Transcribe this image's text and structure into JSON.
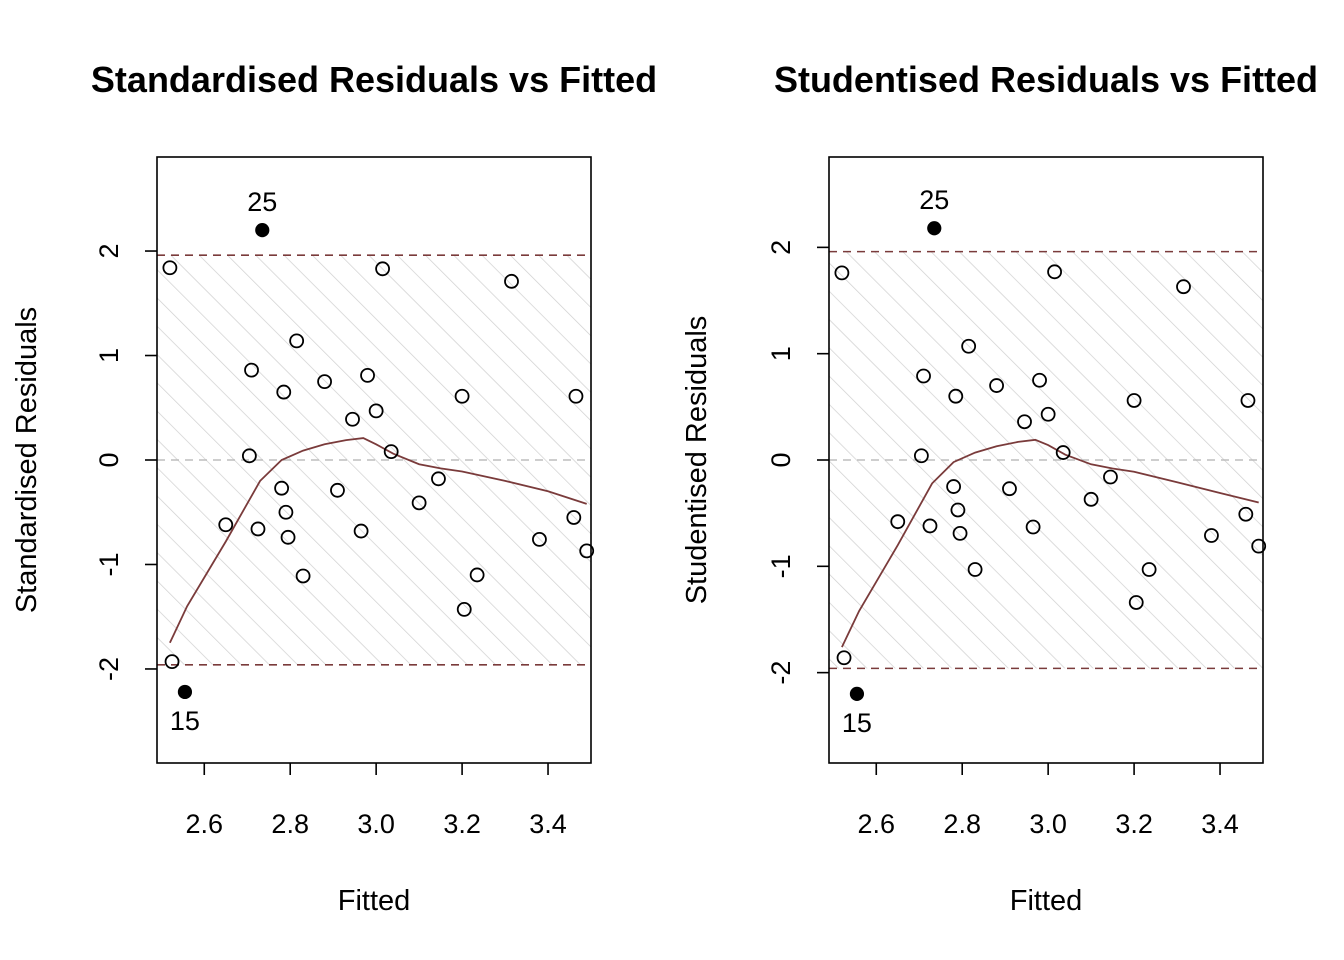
{
  "chart_data": [
    {
      "type": "scatter",
      "title": "Standardised Residuals vs Fitted",
      "xlabel": "Fitted",
      "ylabel": "Standardised Residuals",
      "xlim": [
        2.49,
        3.5
      ],
      "ylim": [
        -2.9,
        2.9
      ],
      "xticks": [
        "2.6",
        "2.8",
        "3.0",
        "3.2",
        "3.4"
      ],
      "yticks": [
        "-2",
        "-1",
        "0",
        "1",
        "2"
      ],
      "bounds": [
        -1.96,
        1.96
      ],
      "points": [
        {
          "x": 2.52,
          "y": 1.84
        },
        {
          "x": 2.525,
          "y": -1.93
        },
        {
          "x": 2.65,
          "y": -0.62
        },
        {
          "x": 2.705,
          "y": 0.04
        },
        {
          "x": 2.71,
          "y": 0.86
        },
        {
          "x": 2.725,
          "y": -0.66
        },
        {
          "x": 2.78,
          "y": -0.27
        },
        {
          "x": 2.785,
          "y": 0.65
        },
        {
          "x": 2.79,
          "y": -0.5
        },
        {
          "x": 2.795,
          "y": -0.74
        },
        {
          "x": 2.815,
          "y": 1.14
        },
        {
          "x": 2.83,
          "y": -1.11
        },
        {
          "x": 2.88,
          "y": 0.75
        },
        {
          "x": 2.91,
          "y": -0.29
        },
        {
          "x": 2.945,
          "y": 0.39
        },
        {
          "x": 2.965,
          "y": -0.68
        },
        {
          "x": 2.98,
          "y": 0.81
        },
        {
          "x": 3.0,
          "y": 0.47
        },
        {
          "x": 3.015,
          "y": 1.83
        },
        {
          "x": 3.035,
          "y": 0.08
        },
        {
          "x": 3.1,
          "y": -0.41
        },
        {
          "x": 3.145,
          "y": -0.18
        },
        {
          "x": 3.2,
          "y": 0.61
        },
        {
          "x": 3.205,
          "y": -1.43
        },
        {
          "x": 3.235,
          "y": -1.1
        },
        {
          "x": 3.315,
          "y": 1.71
        },
        {
          "x": 3.38,
          "y": -0.76
        },
        {
          "x": 3.46,
          "y": -0.55
        },
        {
          "x": 3.465,
          "y": 0.61
        },
        {
          "x": 3.49,
          "y": -0.87
        }
      ],
      "outliers": [
        {
          "x": 2.735,
          "y": 2.2,
          "label": "25"
        },
        {
          "x": 2.555,
          "y": -2.22,
          "label": "15"
        }
      ],
      "smooth": [
        {
          "x": 2.52,
          "y": -1.75
        },
        {
          "x": 2.56,
          "y": -1.4
        },
        {
          "x": 2.65,
          "y": -0.78
        },
        {
          "x": 2.73,
          "y": -0.2
        },
        {
          "x": 2.78,
          "y": 0.0
        },
        {
          "x": 2.83,
          "y": 0.09
        },
        {
          "x": 2.88,
          "y": 0.15
        },
        {
          "x": 2.93,
          "y": 0.19
        },
        {
          "x": 2.97,
          "y": 0.21
        },
        {
          "x": 3.0,
          "y": 0.15
        },
        {
          "x": 3.04,
          "y": 0.06
        },
        {
          "x": 3.1,
          "y": -0.04
        },
        {
          "x": 3.15,
          "y": -0.08
        },
        {
          "x": 3.2,
          "y": -0.11
        },
        {
          "x": 3.3,
          "y": -0.2
        },
        {
          "x": 3.4,
          "y": -0.3
        },
        {
          "x": 3.49,
          "y": -0.42
        }
      ]
    },
    {
      "type": "scatter",
      "title": "Studentised Residuals vs Fitted",
      "xlabel": "Fitted",
      "ylabel": "Studentised Residuals",
      "xlim": [
        2.49,
        3.5
      ],
      "ylim": [
        -2.85,
        2.85
      ],
      "xticks": [
        "2.6",
        "2.8",
        "3.0",
        "3.2",
        "3.4"
      ],
      "yticks": [
        "-2",
        "-1",
        "0",
        "1",
        "2"
      ],
      "bounds": [
        -1.96,
        1.96
      ],
      "points": [
        {
          "x": 2.52,
          "y": 1.76
        },
        {
          "x": 2.525,
          "y": -1.86
        },
        {
          "x": 2.65,
          "y": -0.58
        },
        {
          "x": 2.705,
          "y": 0.04
        },
        {
          "x": 2.71,
          "y": 0.79
        },
        {
          "x": 2.725,
          "y": -0.62
        },
        {
          "x": 2.78,
          "y": -0.25
        },
        {
          "x": 2.785,
          "y": 0.6
        },
        {
          "x": 2.79,
          "y": -0.47
        },
        {
          "x": 2.795,
          "y": -0.69
        },
        {
          "x": 2.815,
          "y": 1.07
        },
        {
          "x": 2.83,
          "y": -1.03
        },
        {
          "x": 2.88,
          "y": 0.7
        },
        {
          "x": 2.91,
          "y": -0.27
        },
        {
          "x": 2.945,
          "y": 0.36
        },
        {
          "x": 2.965,
          "y": -0.63
        },
        {
          "x": 2.98,
          "y": 0.75
        },
        {
          "x": 3.0,
          "y": 0.43
        },
        {
          "x": 3.015,
          "y": 1.77
        },
        {
          "x": 3.035,
          "y": 0.07
        },
        {
          "x": 3.1,
          "y": -0.37
        },
        {
          "x": 3.145,
          "y": -0.16
        },
        {
          "x": 3.2,
          "y": 0.56
        },
        {
          "x": 3.205,
          "y": -1.34
        },
        {
          "x": 3.235,
          "y": -1.03
        },
        {
          "x": 3.315,
          "y": 1.63
        },
        {
          "x": 3.38,
          "y": -0.71
        },
        {
          "x": 3.46,
          "y": -0.51
        },
        {
          "x": 3.465,
          "y": 0.56
        },
        {
          "x": 3.49,
          "y": -0.81
        }
      ],
      "outliers": [
        {
          "x": 2.735,
          "y": 2.18,
          "label": "25"
        },
        {
          "x": 2.555,
          "y": -2.2,
          "label": "15"
        }
      ],
      "smooth": [
        {
          "x": 2.52,
          "y": -1.76
        },
        {
          "x": 2.56,
          "y": -1.42
        },
        {
          "x": 2.65,
          "y": -0.8
        },
        {
          "x": 2.73,
          "y": -0.22
        },
        {
          "x": 2.78,
          "y": -0.02
        },
        {
          "x": 2.83,
          "y": 0.07
        },
        {
          "x": 2.88,
          "y": 0.13
        },
        {
          "x": 2.93,
          "y": 0.17
        },
        {
          "x": 2.97,
          "y": 0.19
        },
        {
          "x": 3.0,
          "y": 0.14
        },
        {
          "x": 3.04,
          "y": 0.05
        },
        {
          "x": 3.1,
          "y": -0.04
        },
        {
          "x": 3.15,
          "y": -0.08
        },
        {
          "x": 3.2,
          "y": -0.11
        },
        {
          "x": 3.3,
          "y": -0.21
        },
        {
          "x": 3.4,
          "y": -0.31
        },
        {
          "x": 3.49,
          "y": -0.4
        }
      ]
    }
  ]
}
